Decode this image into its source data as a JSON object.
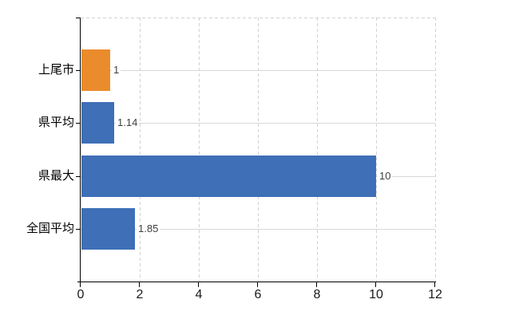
{
  "chart_data": {
    "type": "bar",
    "orientation": "horizontal",
    "title": "",
    "xlabel": "",
    "ylabel": "",
    "categories": [
      "上尾市",
      "県平均",
      "県最大",
      "全国平均"
    ],
    "values": [
      1,
      1.14,
      10,
      1.85
    ],
    "value_labels": [
      "1",
      "1.14",
      "10",
      "1.85"
    ],
    "bar_colors": [
      "#eb8c2c",
      "#3e6fb7",
      "#3e6fb7",
      "#3e6fb7"
    ],
    "xlim": [
      0,
      12
    ],
    "x_ticks": [
      0,
      2,
      4,
      6,
      8,
      10,
      12
    ],
    "x_tick_labels": [
      "0",
      "2",
      "4",
      "6",
      "8",
      "10",
      "12"
    ],
    "grid": {
      "vertical": "dashed",
      "horizontal": "solid",
      "top_border": "dashed"
    },
    "legend": false,
    "colors": {
      "background": "#ffffff",
      "axis": "#000000",
      "grid_solid": "#d9d9d9",
      "grid_dashed": "#d2d2d6",
      "category_label": "#000000",
      "tick_label": "#1a1a1a",
      "value_label": "#3f3f3f"
    }
  }
}
